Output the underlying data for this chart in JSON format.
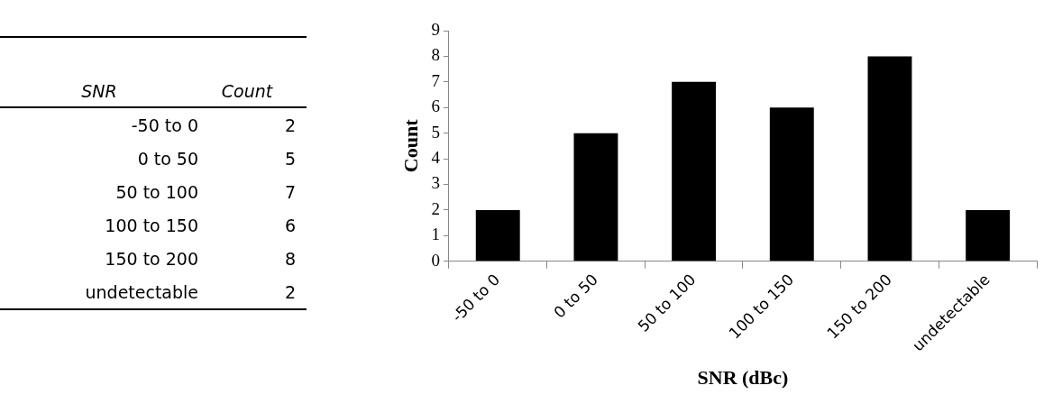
{
  "chart_data": [
    {
      "type": "other",
      "categories": [
        "-50 to 0",
        "0 to 50",
        "50 to 100",
        "100 to 150",
        "150 to 200",
        "undetectable"
      ],
      "value_labels": [
        "2",
        "5",
        "7",
        "6",
        "8",
        "2"
      ],
      "annotations": [
        "SNR",
        "Count"
      ]
    },
    {
      "type": "bar",
      "categories": [
        "-50 to 0",
        "0 to 50",
        "50 to 100",
        "100 to 150",
        "150 to 200",
        "undetectable"
      ],
      "values": [
        2,
        5,
        7,
        6,
        8,
        2
      ],
      "color": "#000000",
      "xlabel": "SNR (dBc)",
      "ylabel": "Count",
      "ylim": [
        0,
        9
      ],
      "yticks": [
        0,
        1,
        2,
        3,
        4,
        5,
        6,
        7,
        8,
        9
      ],
      "grid": false,
      "legend": false
    }
  ]
}
